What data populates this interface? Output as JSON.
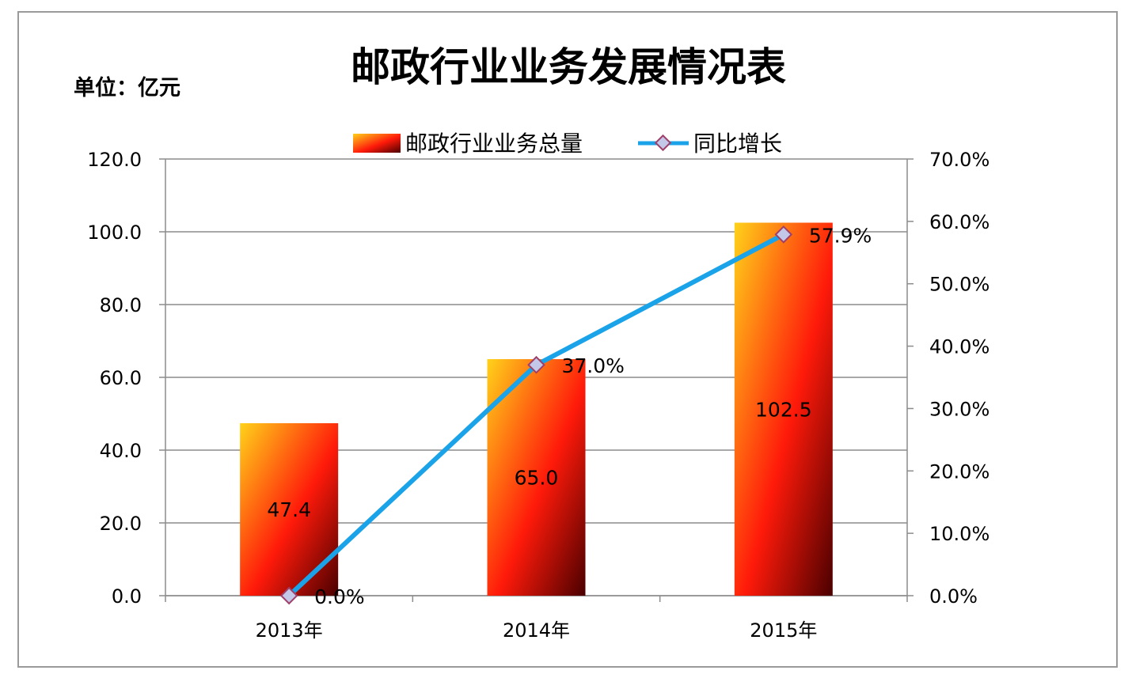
{
  "chart_data": {
    "type": "bar",
    "title": "邮政行业业务发展情况表",
    "unit_label": "单位：亿元",
    "categories": [
      "2013年",
      "2014年",
      "2015年"
    ],
    "series": [
      {
        "name": "邮政行业业务总量",
        "type": "bar",
        "axis": "left",
        "values": [
          47.4,
          65.0,
          102.5
        ],
        "value_labels": [
          "47.4",
          "65.0",
          "102.5"
        ]
      },
      {
        "name": "同比增长",
        "type": "line",
        "axis": "right",
        "values": [
          0.0,
          37.0,
          57.9
        ],
        "value_labels": [
          "0.0%",
          "37.0%",
          "57.9%"
        ]
      }
    ],
    "y_left": {
      "min": 0,
      "max": 120,
      "step": 20,
      "tick_labels": [
        "0.0",
        "20.0",
        "40.0",
        "60.0",
        "80.0",
        "100.0",
        "120.0"
      ]
    },
    "y_right": {
      "min": 0,
      "max": 70,
      "step": 10,
      "tick_labels": [
        "0.0%",
        "10.0%",
        "20.0%",
        "30.0%",
        "40.0%",
        "50.0%",
        "60.0%",
        "70.0%"
      ]
    },
    "grid": true,
    "legend_position": "top-center",
    "colors": {
      "line": "#1aa3e8",
      "marker_fill": "#c4c8e8",
      "marker_stroke": "#a0406a",
      "bar_top": "#ffd21a",
      "bar_mid": "#ff1a0a",
      "bar_dark": "#4a0000",
      "grid": "#8c8c8c"
    }
  }
}
